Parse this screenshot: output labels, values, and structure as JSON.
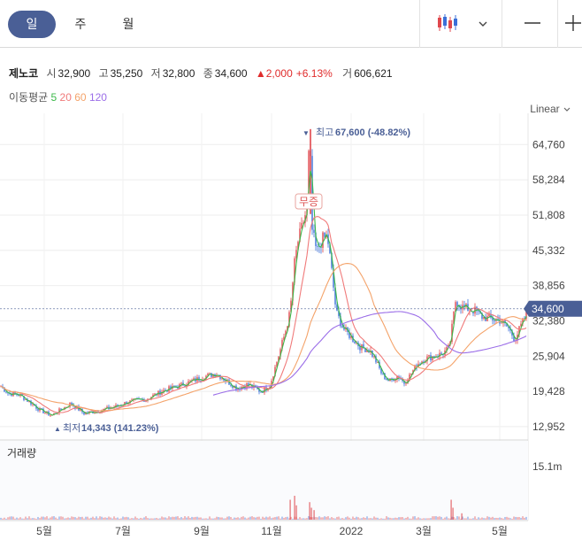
{
  "tabs": [
    {
      "label": "일",
      "active": true
    },
    {
      "label": "주",
      "active": false
    },
    {
      "label": "월",
      "active": false
    }
  ],
  "toolbar": {
    "chart_type_icon": "candlestick-icon",
    "dropdown_icon": "chevron-down-icon",
    "minus_icon": "minus-icon",
    "plus_icon": "plus-icon"
  },
  "info": {
    "name": "제노코",
    "open_label": "시",
    "open": "32,900",
    "high_label": "고",
    "high": "35,250",
    "low_label": "저",
    "low": "32,800",
    "close_label": "종",
    "close": "34,600",
    "change": "▲2,000",
    "change_pct": "+6.13%",
    "volume_label": "거",
    "volume": "606,621"
  },
  "ma": {
    "label": "이동평균",
    "periods": [
      "5",
      "20",
      "60",
      "120"
    ],
    "colors": [
      "#3cb94a",
      "#f07a7a",
      "#f4a36a",
      "#9b6ee8"
    ]
  },
  "scale_label": "Linear",
  "annotations": {
    "high": "최고",
    "high_value": "67,600 (-48.82%)",
    "low": "최저",
    "low_value": "14,343 (141.23%)",
    "event": "무증"
  },
  "volume_label": "거래량",
  "colors": {
    "up": "#e0474c",
    "down": "#3a6fd8",
    "accent": "#4a5f96",
    "price_tag": "#4a5f96"
  },
  "chart_data": {
    "type": "candlestick",
    "y_ticks": [
      64760,
      58284,
      51808,
      45332,
      38856,
      32380,
      25904,
      19428,
      12952
    ],
    "ylim": [
      10500,
      70500
    ],
    "x_labels": [
      "5월",
      "7월",
      "9월",
      "11월",
      "2022",
      "3월",
      "5월"
    ],
    "current_price": "34,600",
    "current_value": 34600,
    "volume_tick": "15.1m",
    "price_keypoints": [
      [
        0,
        20500
      ],
      [
        10,
        19000
      ],
      [
        22,
        18800
      ],
      [
        35,
        17300
      ],
      [
        45,
        16000
      ],
      [
        58,
        15000
      ],
      [
        70,
        16200
      ],
      [
        80,
        17200
      ],
      [
        95,
        15400
      ],
      [
        110,
        15800
      ],
      [
        130,
        16600
      ],
      [
        145,
        17500
      ],
      [
        165,
        18000
      ],
      [
        185,
        19600
      ],
      [
        200,
        20300
      ],
      [
        215,
        21200
      ],
      [
        232,
        22200
      ],
      [
        245,
        22700
      ],
      [
        255,
        21500
      ],
      [
        268,
        20000
      ],
      [
        280,
        20700
      ],
      [
        295,
        19400
      ],
      [
        305,
        20500
      ],
      [
        315,
        26000
      ],
      [
        322,
        30000
      ],
      [
        328,
        34000
      ],
      [
        333,
        43000
      ],
      [
        337,
        47000
      ],
      [
        342,
        50000
      ],
      [
        347,
        53000
      ],
      [
        350,
        67600
      ],
      [
        353,
        49000
      ],
      [
        358,
        45000
      ],
      [
        365,
        47500
      ],
      [
        370,
        48000
      ],
      [
        374,
        43000
      ],
      [
        380,
        34000
      ],
      [
        388,
        31000
      ],
      [
        398,
        29200
      ],
      [
        408,
        27500
      ],
      [
        418,
        27000
      ],
      [
        425,
        25000
      ],
      [
        432,
        22500
      ],
      [
        440,
        21300
      ],
      [
        450,
        22300
      ],
      [
        457,
        21000
      ],
      [
        464,
        22500
      ],
      [
        472,
        24500
      ],
      [
        480,
        25400
      ],
      [
        490,
        25900
      ],
      [
        500,
        26300
      ],
      [
        508,
        27500
      ],
      [
        515,
        36000
      ],
      [
        522,
        35000
      ],
      [
        530,
        34500
      ],
      [
        538,
        34200
      ],
      [
        546,
        33000
      ],
      [
        555,
        32800
      ],
      [
        565,
        32500
      ],
      [
        575,
        31000
      ],
      [
        582,
        29000
      ],
      [
        590,
        31800
      ],
      [
        598,
        34600
      ]
    ],
    "volume_spikes": [
      [
        328,
        0.25
      ],
      [
        333,
        0.3
      ],
      [
        335,
        0.18
      ],
      [
        350,
        0.22
      ],
      [
        352,
        0.15
      ],
      [
        355,
        0.12
      ],
      [
        510,
        0.25
      ],
      [
        512,
        0.15
      ],
      [
        522,
        0.08
      ]
    ]
  }
}
